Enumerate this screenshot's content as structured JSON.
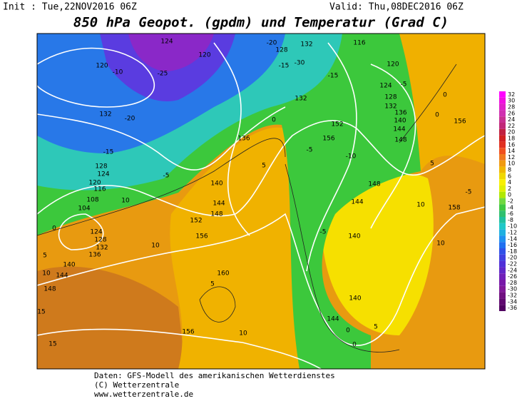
{
  "header": {
    "init": "Init : Tue,22NOV2016 06Z",
    "valid": "Valid: Thu,08DEC2016 06Z",
    "title": "850 hPa Geopot. (gpdm) und Temperatur (Grad C)"
  },
  "colorbar": {
    "labels": [
      "32",
      "30",
      "28",
      "26",
      "24",
      "22",
      "20",
      "18",
      "16",
      "14",
      "12",
      "10",
      "8",
      "6",
      "4",
      "2",
      "0",
      "-2",
      "-4",
      "-6",
      "-8",
      "-10",
      "-12",
      "-14",
      "-16",
      "-18",
      "-20",
      "-22",
      "-24",
      "-26",
      "-28",
      "-30",
      "-32",
      "-34",
      "-36"
    ]
  },
  "contour_labels": [
    "120",
    "-10",
    "124",
    "120",
    "-25",
    "132",
    "-20",
    "-15",
    "128",
    "124",
    "120",
    "116",
    "108",
    "104",
    "10",
    "0",
    "124",
    "128",
    "132",
    "136",
    "5",
    "140",
    "10",
    "144",
    "148",
    "10",
    "15",
    "15",
    "152",
    "156",
    "160",
    "5",
    "156",
    "10",
    "0",
    "136",
    "140",
    "144",
    "148",
    "-5",
    "5",
    "132",
    "-15",
    "-10",
    "156",
    "152",
    "-5",
    "-5",
    "144",
    "140",
    "148",
    "140",
    "144",
    "0",
    "0",
    "5",
    "10",
    "10",
    "156",
    "158",
    "0",
    "-5",
    "5",
    "120",
    "124",
    "-5",
    "128",
    "132",
    "136",
    "140",
    "144",
    "148",
    "0",
    "116",
    "132",
    "128",
    "-20",
    "-30",
    "-15"
  ],
  "footer": {
    "line1": "Daten: GFS-Modell des amerikanischen Wetterdienstes",
    "line2": "(C) Wetterzentrale",
    "line3": "www.wetterzentrale.de"
  }
}
